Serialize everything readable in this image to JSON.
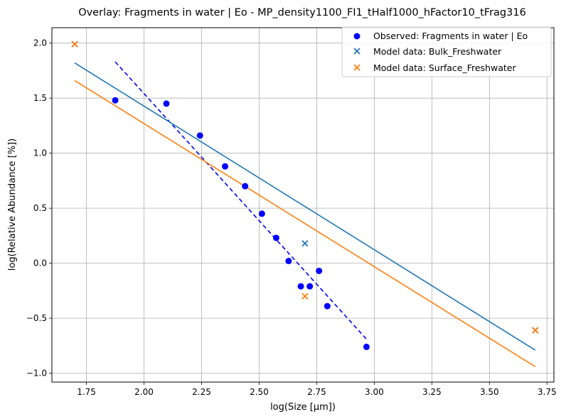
{
  "chart_data": {
    "type": "scatter",
    "title": "Overlay: Fragments in water | Eo - MP_density1100_FI1_tHalf1000_hFactor10_tFrag316",
    "xlabel": "log(Size [μm])",
    "ylabel": "log(Relative Abundance [%])",
    "xlim": [
      1.6,
      3.78
    ],
    "ylim": [
      -1.08,
      2.14
    ],
    "xticks": [
      "1.75",
      "2.00",
      "2.25",
      "2.50",
      "2.75",
      "3.00",
      "3.25",
      "3.50",
      "3.75"
    ],
    "yticks": [
      "−1.0",
      "−0.5",
      "0.0",
      "0.5",
      "1.0",
      "1.5",
      "2.0"
    ],
    "grid": true,
    "legend_position": "top-right",
    "colors": {
      "observed": "#0000ff",
      "bulk": "#1f77b4",
      "surface": "#ff7f0e"
    },
    "series": [
      {
        "name": "Observed: Fragments in water | Eo",
        "marker": "circle",
        "points": [
          [
            1.875,
            1.48
          ],
          [
            2.097,
            1.45
          ],
          [
            2.243,
            1.16
          ],
          [
            2.352,
            0.88
          ],
          [
            2.439,
            0.7
          ],
          [
            2.512,
            0.45
          ],
          [
            2.574,
            0.23
          ],
          [
            2.628,
            0.02
          ],
          [
            2.681,
            -0.21
          ],
          [
            2.72,
            -0.21
          ],
          [
            2.76,
            -0.07
          ],
          [
            2.796,
            -0.39
          ],
          [
            2.966,
            -0.76
          ]
        ]
      },
      {
        "name": "Model data: Bulk_Freshwater",
        "marker": "x",
        "points": [
          [
            1.699,
            1.99
          ],
          [
            2.699,
            0.18
          ],
          [
            3.699,
            -0.61
          ]
        ]
      },
      {
        "name": "Model data: Surface_Freshwater",
        "marker": "x",
        "points": [
          [
            1.699,
            1.99
          ],
          [
            2.699,
            -0.3
          ],
          [
            3.699,
            -0.61
          ]
        ]
      }
    ],
    "fit_lines": [
      {
        "style": "dashed",
        "color": "observed",
        "x": [
          1.875,
          2.966
        ],
        "y": [
          1.83,
          -0.69
        ]
      },
      {
        "style": "solid",
        "color": "bulk",
        "x": [
          1.699,
          3.699
        ],
        "y": [
          1.82,
          -0.79
        ]
      },
      {
        "style": "solid",
        "color": "surface",
        "x": [
          1.699,
          3.699
        ],
        "y": [
          1.66,
          -0.94
        ]
      }
    ]
  }
}
